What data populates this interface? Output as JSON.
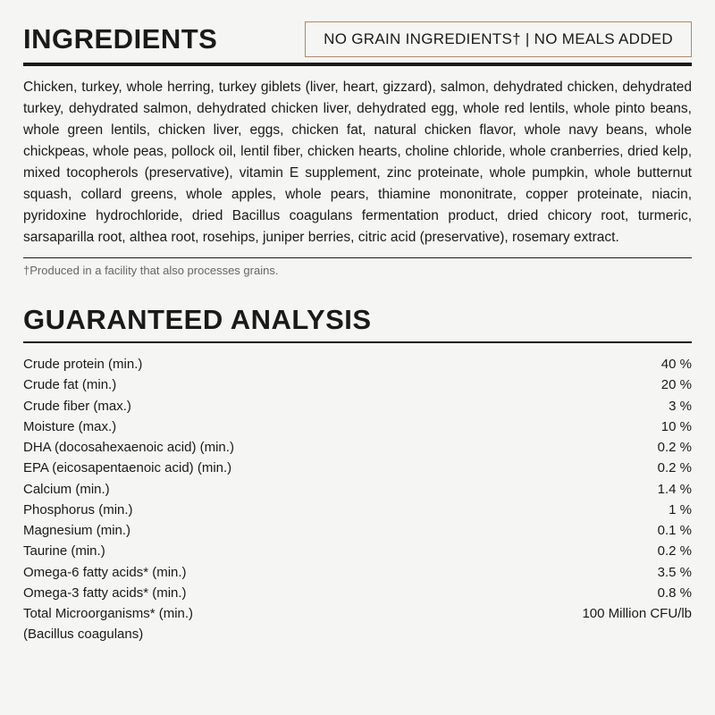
{
  "ingredients": {
    "title": "INGREDIENTS",
    "badge": "NO GRAIN INGREDIENTS† | NO MEALS ADDED",
    "text": "Chicken, turkey, whole herring, turkey giblets (liver, heart, gizzard), salmon, dehydrated chicken, dehydrated turkey, dehydrated salmon, dehydrated chicken liver, dehydrated egg, whole red lentils, whole pinto beans, whole green lentils, chicken liver, eggs, chicken fat, natural chicken flavor, whole navy beans, whole chickpeas, whole peas, pollock oil, lentil fiber, chicken hearts, choline chloride, whole cranberries, dried kelp, mixed tocopherols (preservative), vitamin E supplement, zinc proteinate, whole pumpkin, whole butternut squash, collard greens, whole apples, whole pears, thiamine mononitrate, copper proteinate, niacin, pyridoxine hydrochloride, dried Bacillus coagulans fermentation product, dried chicory root, turmeric, sarsaparilla root, althea root, rosehips, juniper berries, citric acid (preservative), rosemary extract.",
    "footnote": "†Produced in a facility that also processes grains."
  },
  "analysis": {
    "title": "GUARANTEED ANALYSIS",
    "rows": [
      {
        "label": "Crude protein (min.)",
        "value": "40 %"
      },
      {
        "label": "Crude fat (min.)",
        "value": "20 %"
      },
      {
        "label": "Crude fiber (max.)",
        "value": "3 %"
      },
      {
        "label": "Moisture (max.)",
        "value": "10 %"
      },
      {
        "label": "DHA (docosahexaenoic acid) (min.)",
        "value": "0.2 %"
      },
      {
        "label": "EPA (eicosapentaenoic acid) (min.)",
        "value": "0.2 %"
      },
      {
        "label": "Calcium (min.)",
        "value": "1.4 %"
      },
      {
        "label": "Phosphorus (min.)",
        "value": "1 %"
      },
      {
        "label": "Magnesium (min.)",
        "value": "0.1 %"
      },
      {
        "label": "Taurine (min.)",
        "value": "0.2 %"
      },
      {
        "label": "Omega-6 fatty acids* (min.)",
        "value": "3.5 %"
      },
      {
        "label": "Omega-3 fatty acids* (min.)",
        "value": "0.8 %"
      },
      {
        "label": "Total Microorganisms* (min.)",
        "value": "100 Million CFU/lb"
      },
      {
        "label": "(Bacillus coagulans)",
        "value": ""
      }
    ]
  }
}
